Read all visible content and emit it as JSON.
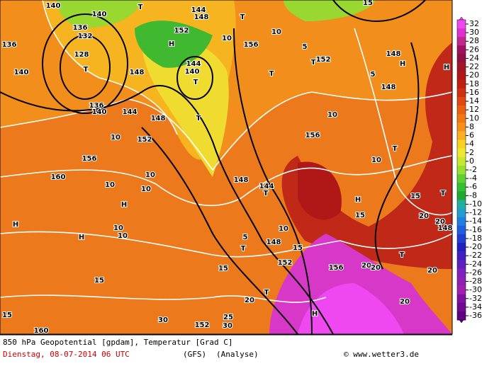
{
  "footer": {
    "line1": "850 hPa Geopotential [gpdam], Temperatur [Grad C]",
    "date": "Dienstag, 08-07-2014  06 UTC",
    "model": "(GFS)",
    "run": "(Analyse)",
    "credit": "© www.wetter3.de"
  },
  "colorbar": {
    "ticks": [
      32,
      30,
      28,
      26,
      24,
      22,
      20,
      18,
      16,
      14,
      12,
      10,
      8,
      6,
      4,
      2,
      0,
      -2,
      -4,
      -6,
      -8,
      -10,
      -12,
      -14,
      -16,
      -18,
      -20,
      -22,
      -24,
      -26,
      -28,
      -30,
      -32,
      -34,
      -36
    ],
    "colors": [
      "#f048f0",
      "#e030d0",
      "#c02890",
      "#a01060",
      "#901040",
      "#a01828",
      "#b01818",
      "#c02010",
      "#d03010",
      "#e04810",
      "#e86010",
      "#f07810",
      "#f89018",
      "#f8b020",
      "#f8d020",
      "#f0e830",
      "#c8e830",
      "#98e030",
      "#60d030",
      "#30c030",
      "#20a830",
      "#20b0a0",
      "#20a0d0",
      "#2080e0",
      "#2060e0",
      "#2040d0",
      "#2020c0",
      "#4020c0",
      "#6020c0",
      "#8020c0",
      "#9020b0",
      "#a020b0",
      "#8010a0",
      "#700890",
      "#600080"
    ]
  },
  "map_labels": [
    "140",
    "140",
    "136",
    "132",
    "128",
    "T",
    "136",
    "140",
    "136",
    "140",
    "144",
    "T",
    "144",
    "148",
    "152",
    "H",
    "144",
    "140",
    "T",
    "148",
    "T",
    "10",
    "156",
    "T",
    "T",
    "T",
    "152",
    "148",
    "H",
    "H",
    "148",
    "5",
    "10",
    "156",
    "148",
    "152",
    "10",
    "156",
    "160",
    "10",
    "10",
    "10",
    "H",
    "H",
    "H",
    "10",
    "10",
    "148",
    "144",
    "T",
    "10",
    "5",
    "T",
    "148",
    "152",
    "15",
    "15",
    "H",
    "15",
    "T",
    "10",
    "15",
    "T",
    "20",
    "20",
    "148",
    "T",
    "156",
    "20",
    "20",
    "20",
    "20",
    "T",
    "20",
    "H",
    "15",
    "160",
    "30",
    "152",
    "25",
    "30",
    "15",
    "5",
    "10",
    "15"
  ]
}
